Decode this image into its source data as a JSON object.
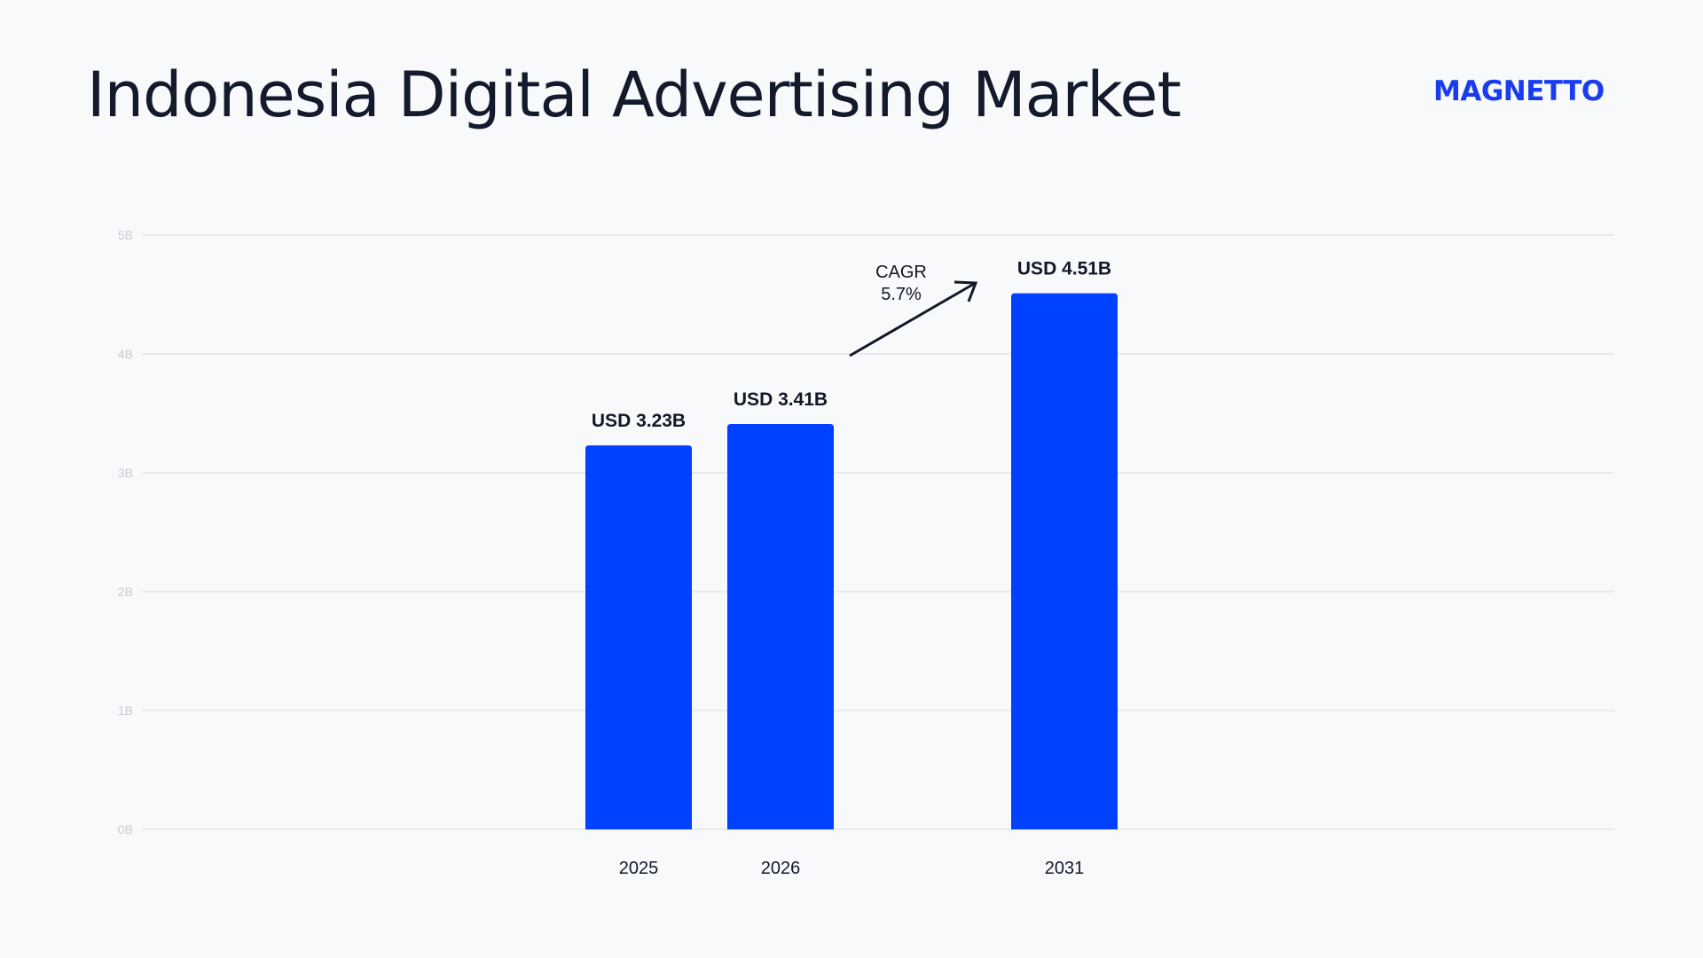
{
  "title": "Indonesia Digital Advertising Market",
  "logo": {
    "text": "MAGNETTO",
    "color": "#1a3cf0"
  },
  "colors": {
    "bar": "#0040ff",
    "grid": "#d9dce2",
    "tick": "#c7cbd3",
    "text": "#111827",
    "background": "#f8f9fb"
  },
  "chart_data": {
    "type": "bar",
    "categories": [
      "2025",
      "2026",
      "2031"
    ],
    "values": [
      3.23,
      3.41,
      4.51
    ],
    "data_labels": [
      "USD 3.23B",
      "USD 3.41B",
      "USD 4.51B"
    ],
    "yticks": [
      0,
      1,
      2,
      3,
      4,
      5
    ],
    "ytick_labels": [
      "0B",
      "1B",
      "2B",
      "3B",
      "4B",
      "5B"
    ],
    "ylim": [
      0,
      5
    ],
    "grid": true,
    "title": "Indonesia Digital Advertising Market",
    "xlabel": "",
    "ylabel": "",
    "annotation": {
      "line1": "CAGR",
      "line2": "5.7%"
    }
  }
}
